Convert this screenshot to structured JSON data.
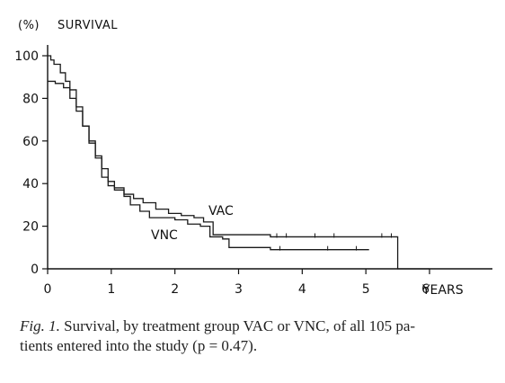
{
  "chart_data": {
    "type": "line",
    "ylabel": "(%)",
    "title": "SURVIVAL",
    "xlabel": "",
    "x_unit_label": "YEARS",
    "xlim": [
      0,
      7
    ],
    "ylim": [
      0,
      100
    ],
    "x_ticks": [
      0,
      1,
      2,
      3,
      4,
      5,
      6
    ],
    "x_tick_labels": [
      "0",
      "1",
      "2",
      "3",
      "4",
      "5",
      "6"
    ],
    "y_ticks": [
      0,
      20,
      40,
      60,
      80,
      100
    ],
    "y_tick_labels": [
      "0",
      "20",
      "40",
      "60",
      "80",
      "100"
    ],
    "series": [
      {
        "name": "VAC",
        "x": [
          0,
          0.05,
          0.1,
          0.2,
          0.28,
          0.35,
          0.45,
          0.55,
          0.65,
          0.75,
          0.85,
          0.95,
          1.05,
          1.2,
          1.35,
          1.5,
          1.7,
          1.9,
          2.1,
          2.3,
          2.45,
          2.6,
          3.2,
          3.5,
          3.65,
          5.5,
          5.5,
          6.0
        ],
        "y": [
          100,
          98,
          96,
          92,
          88,
          84,
          76,
          67,
          59,
          52,
          43,
          39,
          37,
          35,
          33,
          31,
          28,
          26,
          25,
          24,
          22,
          16,
          16,
          15,
          15,
          15,
          0,
          0
        ],
        "censored_x": [
          3.6,
          3.75,
          4.2,
          4.5,
          5.25,
          5.4
        ],
        "censored_y": [
          15,
          15,
          15,
          15,
          15,
          15
        ]
      },
      {
        "name": "VNC",
        "x": [
          0,
          0.12,
          0.25,
          0.35,
          0.45,
          0.55,
          0.65,
          0.75,
          0.85,
          0.95,
          1.05,
          1.2,
          1.3,
          1.45,
          1.6,
          1.8,
          2.0,
          2.2,
          2.4,
          2.55,
          2.75,
          2.85,
          3.1,
          3.5,
          5.05
        ],
        "y": [
          88,
          87,
          85,
          80,
          74,
          67,
          60,
          53,
          47,
          41,
          38,
          34,
          30,
          27,
          24,
          24,
          23,
          21,
          20,
          15,
          14,
          10,
          10,
          9,
          9
        ],
        "censored_x": [
          3.65,
          4.4,
          4.85
        ],
        "censored_y": [
          9,
          9,
          9
        ]
      }
    ],
    "legend": "inline labels",
    "grid": false
  },
  "caption": {
    "label": "Fig. 1.",
    "text": "Survival, by treatment group VAC or VNC, of all 105 pa-",
    "text2": "tients entered into the study (p = 0.47)."
  }
}
